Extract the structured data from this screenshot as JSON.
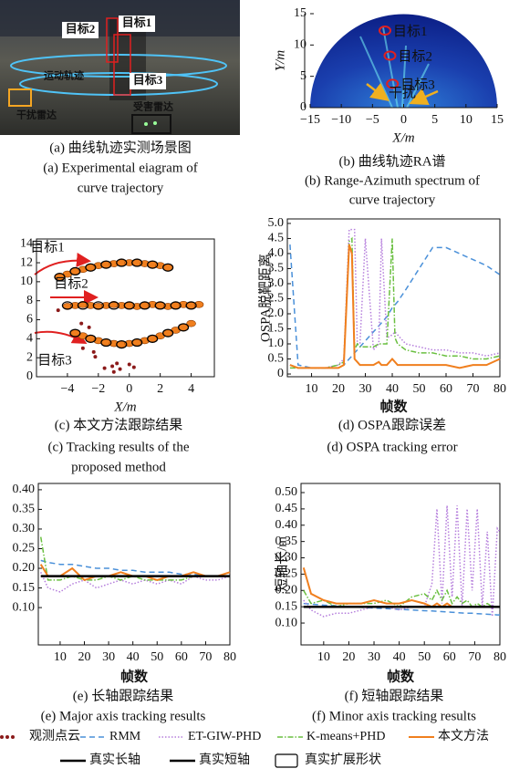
{
  "chart_data": [
    {
      "type": "image",
      "labels": [
        "目标1",
        "目标2",
        "目标3",
        "运动轨迹",
        "干扰雷达",
        "受害雷达"
      ],
      "caption": [
        "(a) 曲线轨迹实测场景图",
        "(a) Experimental eiagram of",
        "curve trajectory"
      ]
    },
    {
      "type": "spectrum",
      "xlim": [
        -15,
        15
      ],
      "ylim": [
        0,
        15
      ],
      "xticks": [
        {
          "value": -15,
          "label": "−15"
        },
        {
          "value": -10,
          "label": "−10"
        },
        {
          "value": -5,
          "label": "−5"
        },
        0,
        5,
        10,
        15
      ],
      "yticks": [
        0,
        5,
        10,
        15
      ],
      "xlabel": "X/m",
      "ylabel": "Y/m",
      "targets": [
        {
          "label": "目标1",
          "x": -3,
          "y": 12.3
        },
        {
          "label": "目标2",
          "x": -2.2,
          "y": 8.3
        },
        {
          "label": "目标3",
          "x": -1.8,
          "y": 3.8
        }
      ],
      "interference_label": "干扰",
      "caption": [
        "(b) 曲线轨迹RA谱",
        "(b) Range-Azimuth spectrum of",
        "curve trajectory"
      ]
    },
    {
      "type": "scatter",
      "xlim": [
        -6,
        5.5
      ],
      "ylim": [
        0,
        14.5
      ],
      "xticks": [
        {
          "value": -4,
          "label": "−4"
        },
        {
          "value": -2,
          "label": "−2"
        },
        0,
        2,
        4
      ],
      "yticks": [
        0,
        2,
        4,
        6,
        8,
        10,
        12,
        14
      ],
      "xlabel": "X/m",
      "target_labels": [
        "目标1",
        "目标2",
        "目标3"
      ],
      "series": [
        {
          "name": "观测点云",
          "color": "#8b1a1a",
          "style": "marker",
          "x": [
            -4.6,
            -3.1,
            -2.2,
            -1.1,
            -0.6,
            -1.0,
            -2.0,
            -3.0,
            0.3,
            -2.3,
            -0.8,
            -3.6,
            -1.6,
            0.0,
            -2.6
          ],
          "y": [
            7.0,
            5.6,
            2.1,
            1.1,
            0.8,
            0.5,
            7.3,
            3.0,
            1.0,
            2.6,
            1.4,
            7.6,
            0.9,
            1.3,
            5.2
          ]
        },
        {
          "name": "本文方法",
          "color": "#f07f1e",
          "style": "ellipse",
          "x": [
            -4.5,
            -4,
            -3.5,
            -3,
            -2.5,
            -2,
            -1.5,
            -1,
            -0.5,
            0,
            0.5,
            1,
            1.5,
            2,
            2.5,
            -4,
            -3.5,
            -3,
            -2.5,
            -2,
            -1.5,
            -1,
            -0.5,
            0,
            0.5,
            1,
            1.5,
            2,
            2.5,
            3,
            3.5,
            4,
            4.5,
            -3.5,
            -3,
            -2.5,
            -2,
            -1.5,
            -1,
            -0.5,
            0,
            0.5,
            1,
            1.5,
            2,
            2.5,
            3,
            3.5,
            4
          ],
          "y": [
            10.5,
            10.8,
            11.1,
            11.3,
            11.5,
            11.7,
            11.8,
            11.9,
            12.0,
            12.0,
            12.0,
            11.9,
            11.8,
            11.7,
            11.5,
            7.4,
            7.5,
            7.6,
            7.5,
            7.4,
            7.5,
            7.6,
            7.5,
            7.5,
            7.4,
            7.5,
            7.6,
            7.5,
            7.4,
            7.5,
            7.6,
            7.5,
            7.6,
            4.6,
            4.3,
            4.0,
            3.8,
            3.6,
            3.5,
            3.4,
            3.5,
            3.6,
            3.8,
            4.0,
            4.3,
            4.6,
            4.9,
            5.2,
            5.6
          ]
        },
        {
          "name": "真实扩展形状",
          "color": "#000000",
          "style": "outline",
          "x": [
            -4.5,
            -3.5,
            -2.5,
            -1.5,
            -0.5,
            0.5,
            1.5,
            2.5,
            -4,
            -3,
            -2,
            -1,
            0,
            1,
            2,
            3,
            4,
            -3.5,
            -2.5,
            -1.5,
            -0.5,
            0.5,
            1.5,
            2.5,
            3.5
          ],
          "y": [
            10.5,
            11.1,
            11.5,
            11.8,
            12.0,
            12.0,
            11.8,
            11.5,
            7.5,
            7.5,
            7.5,
            7.5,
            7.5,
            7.5,
            7.5,
            7.5,
            7.5,
            4.6,
            4.0,
            3.6,
            3.4,
            3.6,
            4.0,
            4.6,
            5.2
          ]
        }
      ],
      "caption": [
        "(c) 本文方法跟踪结果",
        "(c) Tracking results of the",
        "proposed method"
      ]
    },
    {
      "type": "line",
      "xlim": [
        1,
        80
      ],
      "ylim": [
        -0.09,
        5.15
      ],
      "xticks": [
        10,
        20,
        30,
        40,
        50,
        60,
        70,
        80
      ],
      "yticks": [
        0,
        0.5,
        {
          "value": 1,
          "label": "1.0"
        },
        1.5,
        {
          "value": 2,
          "label": "2.0"
        },
        2.5,
        {
          "value": 3,
          "label": "3.0"
        },
        3.5,
        {
          "value": 4,
          "label": "4.0"
        },
        4.5,
        {
          "value": 5,
          "label": "5.0"
        }
      ],
      "xlabel": "帧数",
      "ylabel": "OSPA脱靶距离",
      "x": [
        2,
        5,
        10,
        15,
        20,
        22,
        24,
        25,
        26,
        27,
        28,
        30,
        33,
        35,
        36,
        38,
        40,
        41,
        42,
        45,
        50,
        55,
        60,
        65,
        70,
        75,
        80
      ],
      "series": [
        {
          "name": "RMM",
          "color": "#4a90d9",
          "style": "dash",
          "values": [
            4.3,
            0.3,
            0.2,
            0.2,
            0.2,
            0.3,
            0.5,
            0.6,
            0.7,
            0.8,
            0.9,
            1.1,
            1.4,
            1.6,
            1.7,
            1.9,
            2.2,
            2.3,
            2.4,
            2.8,
            3.5,
            4.2,
            4.2,
            4.0,
            3.8,
            3.6,
            3.3
          ]
        },
        {
          "name": "ET-GIW-PHD",
          "color": "#b57edc",
          "style": "dot",
          "values": [
            0.3,
            0.2,
            0.2,
            0.2,
            0.3,
            0.5,
            4.8,
            4.8,
            4.8,
            1.0,
            1.0,
            4.5,
            0.8,
            1.0,
            4.5,
            1.2,
            1.3,
            1.4,
            1.3,
            1.0,
            0.9,
            0.8,
            0.8,
            0.7,
            0.7,
            0.6,
            0.7
          ]
        },
        {
          "name": "K-means+PHD",
          "color": "#6abf40",
          "style": "dashdot",
          "values": [
            0.2,
            0.2,
            0.2,
            0.2,
            0.3,
            0.4,
            4.4,
            4.5,
            0.8,
            1.0,
            0.9,
            0.9,
            0.9,
            1.0,
            1.0,
            1.0,
            4.5,
            1.2,
            1.0,
            0.8,
            0.7,
            0.7,
            0.6,
            0.6,
            0.5,
            0.5,
            0.6
          ]
        },
        {
          "name": "本文方法",
          "color": "#f07f1e",
          "style": "solid",
          "values": [
            0.3,
            0.2,
            0.2,
            0.2,
            0.2,
            0.3,
            4.3,
            4.0,
            0.5,
            0.4,
            0.3,
            0.3,
            0.3,
            0.4,
            0.3,
            0.3,
            0.5,
            0.4,
            0.3,
            0.3,
            0.3,
            0.3,
            0.3,
            0.2,
            0.3,
            0.3,
            0.5
          ]
        }
      ],
      "caption": [
        "(d) OSPA跟踪误差",
        "(d) OSPA tracking error"
      ]
    },
    {
      "type": "line",
      "xlim": [
        1,
        80
      ],
      "ylim": [
        0.005,
        0.416
      ],
      "xticks": [
        10,
        20,
        30,
        40,
        50,
        60,
        70,
        80
      ],
      "yticks": [
        {
          "value": 0.1,
          "label": "0.10"
        },
        0.15,
        {
          "value": 0.2,
          "label": "0.20"
        },
        0.25,
        {
          "value": 0.3,
          "label": "0.30"
        },
        0.35,
        {
          "value": 0.4,
          "label": "0.40"
        }
      ],
      "xlabel": "帧数",
      "x": [
        2,
        5,
        10,
        15,
        20,
        25,
        30,
        35,
        40,
        45,
        50,
        55,
        60,
        65,
        70,
        75,
        80
      ],
      "series": [
        {
          "name": "RMM",
          "color": "#4a90d9",
          "style": "dash",
          "values": [
            0.22,
            0.215,
            0.21,
            0.21,
            0.205,
            0.2,
            0.2,
            0.195,
            0.195,
            0.19,
            0.19,
            0.19,
            0.185,
            0.185,
            0.18,
            0.18,
            0.18
          ]
        },
        {
          "name": "ET-GIW-PHD",
          "color": "#b57edc",
          "style": "dot",
          "values": [
            0.19,
            0.15,
            0.14,
            0.16,
            0.17,
            0.15,
            0.16,
            0.17,
            0.16,
            0.17,
            0.16,
            0.17,
            0.16,
            0.18,
            0.17,
            0.17,
            0.18
          ]
        },
        {
          "name": "K-means+PHD",
          "color": "#6abf40",
          "style": "dashdot",
          "values": [
            0.28,
            0.17,
            0.17,
            0.18,
            0.17,
            0.17,
            0.18,
            0.17,
            0.18,
            0.17,
            0.17,
            0.17,
            0.17,
            0.18,
            0.18,
            0.18,
            0.19
          ]
        },
        {
          "name": "本文方法",
          "color": "#f07f1e",
          "style": "solid",
          "values": [
            0.21,
            0.18,
            0.18,
            0.2,
            0.17,
            0.18,
            0.18,
            0.19,
            0.18,
            0.18,
            0.17,
            0.18,
            0.18,
            0.19,
            0.18,
            0.18,
            0.19
          ]
        },
        {
          "name": "真实长轴",
          "color": "#000000",
          "style": "truth",
          "values": [
            0.18,
            0.18,
            0.18,
            0.18,
            0.18,
            0.18,
            0.18,
            0.18,
            0.18,
            0.18,
            0.18,
            0.18,
            0.18,
            0.18,
            0.18,
            0.18,
            0.18
          ]
        }
      ],
      "caption": [
        "(e) 长轴跟踪结果",
        "(e) Major axis tracking results"
      ]
    },
    {
      "type": "line",
      "xlim": [
        1,
        80
      ],
      "ylim": [
        0.033,
        0.528
      ],
      "xticks": [
        10,
        20,
        30,
        40,
        50,
        60,
        70,
        80
      ],
      "yticks": [
        {
          "value": 0.1,
          "label": "0.10"
        },
        0.15,
        {
          "value": 0.2,
          "label": "0.20"
        },
        0.25,
        {
          "value": 0.3,
          "label": "0.30"
        },
        0.35,
        {
          "value": 0.4,
          "label": "0.40"
        },
        0.45,
        {
          "value": 0.5,
          "label": "0.50"
        }
      ],
      "xlabel": "帧数",
      "ylabel": "短轴长/m",
      "x": [
        2,
        5,
        10,
        15,
        20,
        25,
        30,
        35,
        40,
        45,
        50,
        53,
        55,
        57,
        59,
        61,
        63,
        65,
        67,
        69,
        71,
        73,
        75,
        77,
        79,
        80
      ],
      "series": [
        {
          "name": "RMM",
          "color": "#4a90d9",
          "style": "dash",
          "values": [
            0.16,
            0.158,
            0.155,
            0.153,
            0.15,
            0.148,
            0.146,
            0.144,
            0.142,
            0.14,
            0.138,
            0.137,
            0.136,
            0.135,
            0.134,
            0.133,
            0.132,
            0.131,
            0.13,
            0.13,
            0.129,
            0.128,
            0.127,
            0.126,
            0.125,
            0.125
          ]
        },
        {
          "name": "ET-GIW-PHD",
          "color": "#b57edc",
          "style": "dot",
          "values": [
            0.17,
            0.14,
            0.12,
            0.13,
            0.13,
            0.14,
            0.15,
            0.15,
            0.14,
            0.15,
            0.15,
            0.22,
            0.45,
            0.16,
            0.46,
            0.18,
            0.46,
            0.15,
            0.45,
            0.2,
            0.45,
            0.15,
            0.38,
            0.12,
            0.39,
            0.38
          ]
        },
        {
          "name": "K-means+PHD",
          "color": "#6abf40",
          "style": "dashdot",
          "values": [
            0.2,
            0.16,
            0.17,
            0.15,
            0.16,
            0.16,
            0.16,
            0.17,
            0.15,
            0.18,
            0.19,
            0.17,
            0.2,
            0.17,
            0.2,
            0.16,
            0.18,
            0.16,
            0.17,
            0.15,
            0.16,
            0.15,
            0.16,
            0.15,
            0.15,
            0.15
          ]
        },
        {
          "name": "本文方法",
          "color": "#f07f1e",
          "style": "solid",
          "values": [
            0.27,
            0.19,
            0.17,
            0.16,
            0.16,
            0.16,
            0.17,
            0.16,
            0.16,
            0.17,
            0.16,
            0.15,
            0.16,
            0.15,
            0.16,
            0.15,
            0.15,
            0.15,
            0.15,
            0.15,
            0.15,
            0.15,
            0.15,
            0.15,
            0.15,
            0.15
          ]
        },
        {
          "name": "真实短轴",
          "color": "#000000",
          "style": "truth",
          "values": [
            0.15,
            0.15,
            0.15,
            0.15,
            0.15,
            0.15,
            0.15,
            0.15,
            0.15,
            0.15,
            0.15,
            0.15,
            0.15,
            0.15,
            0.15,
            0.15,
            0.15,
            0.15,
            0.15,
            0.15,
            0.15,
            0.15,
            0.15,
            0.15,
            0.15,
            0.15
          ]
        }
      ],
      "caption": [
        "(f) 短轴跟踪结果",
        "(f) Minor axis tracking results"
      ]
    }
  ]
}
